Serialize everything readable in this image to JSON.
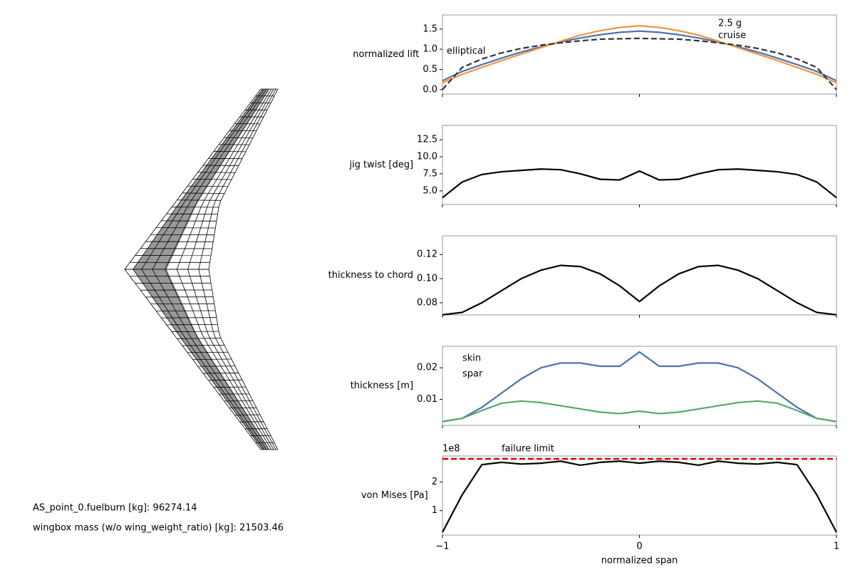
{
  "annotations": [
    "AS_point_0.fuelburn [kg]: 96274.14",
    "wingbox mass (w/o wing_weight_ratio) [kg]: 21503.46"
  ],
  "chart_data": [
    {
      "type": "line",
      "ylabel": "normalized lift",
      "xlim": [
        -1,
        1
      ],
      "xticks": [
        -1,
        0,
        1
      ],
      "show_xtick_labels": false,
      "ylim": [
        -0.11,
        1.85
      ],
      "yticks": [
        {
          "value": 0,
          "label": "0.0"
        },
        0.5,
        {
          "value": 1,
          "label": "1.0"
        },
        1.5
      ],
      "x": [
        -1,
        -0.9,
        -0.8,
        -0.7,
        -0.6,
        -0.5,
        -0.4,
        -0.3,
        -0.2,
        -0.1,
        0,
        0.1,
        0.2,
        0.3,
        0.4,
        0.5,
        0.6,
        0.7,
        0.8,
        0.9,
        1
      ],
      "series": [
        {
          "name": "cruise",
          "color": "#4c72b0",
          "values": [
            0.22,
            0.45,
            0.62,
            0.78,
            0.93,
            1.06,
            1.18,
            1.28,
            1.36,
            1.42,
            1.45,
            1.42,
            1.36,
            1.28,
            1.18,
            1.06,
            0.93,
            0.78,
            0.62,
            0.45,
            0.22
          ]
        },
        {
          "name": "2.5 g",
          "color": "#f5923e",
          "values": [
            0.17,
            0.38,
            0.55,
            0.72,
            0.88,
            1.04,
            1.2,
            1.35,
            1.46,
            1.54,
            1.58,
            1.54,
            1.46,
            1.35,
            1.2,
            1.04,
            0.88,
            0.72,
            0.55,
            0.38,
            0.17
          ]
        },
        {
          "name": "elliptical",
          "color": "#333333",
          "dashed": true,
          "values": [
            0,
            0.55,
            0.76,
            0.91,
            1.02,
            1.1,
            1.16,
            1.21,
            1.25,
            1.26,
            1.27,
            1.26,
            1.25,
            1.21,
            1.16,
            1.1,
            1.02,
            0.91,
            0.76,
            0.55,
            0
          ]
        }
      ]
    },
    {
      "type": "line",
      "ylabel": "jig twist [deg]",
      "xlim": [
        -1,
        1
      ],
      "xticks": [
        -1,
        0,
        1
      ],
      "show_xtick_labels": false,
      "ylim": [
        3.0,
        14.6
      ],
      "yticks": [
        {
          "value": 5,
          "label": "5.0"
        },
        7.5,
        {
          "value": 10,
          "label": "10.0"
        },
        12.5
      ],
      "x": [
        -1,
        -0.9,
        -0.8,
        -0.7,
        -0.6,
        -0.5,
        -0.4,
        -0.3,
        -0.2,
        -0.1,
        0,
        0.1,
        0.2,
        0.3,
        0.4,
        0.5,
        0.6,
        0.7,
        0.8,
        0.9,
        1
      ],
      "series": [
        {
          "name": "jig twist",
          "color": "#000000",
          "values": [
            4.0,
            6.3,
            7.4,
            7.8,
            8.0,
            8.2,
            8.1,
            7.5,
            6.7,
            6.6,
            7.9,
            6.6,
            6.7,
            7.5,
            8.1,
            8.2,
            8.0,
            7.8,
            7.4,
            6.3,
            4.0
          ]
        }
      ]
    },
    {
      "type": "line",
      "ylabel": "thickness to chord",
      "xlim": [
        -1,
        1
      ],
      "xticks": [
        -1,
        0,
        1
      ],
      "show_xtick_labels": false,
      "ylim": [
        0.0699,
        0.1355
      ],
      "yticks": [
        {
          "value": 0.08,
          "label": "0.08"
        },
        {
          "value": 0.1,
          "label": "0.10"
        },
        {
          "value": 0.12,
          "label": "0.12"
        }
      ],
      "x": [
        -1,
        -0.9,
        -0.8,
        -0.7,
        -0.6,
        -0.5,
        -0.4,
        -0.3,
        -0.2,
        -0.1,
        0,
        0.1,
        0.2,
        0.3,
        0.4,
        0.5,
        0.6,
        0.7,
        0.8,
        0.9,
        1
      ],
      "series": [
        {
          "name": "thickness to chord",
          "color": "#000000",
          "values": [
            0.07,
            0.072,
            0.08,
            0.09,
            0.1,
            0.107,
            0.111,
            0.11,
            0.104,
            0.094,
            0.081,
            0.094,
            0.104,
            0.11,
            0.111,
            0.107,
            0.1,
            0.09,
            0.08,
            0.072,
            0.07
          ]
        }
      ]
    },
    {
      "type": "line",
      "ylabel": "thickness [m]",
      "xlim": [
        -1,
        1
      ],
      "xticks": [
        -1,
        0,
        1
      ],
      "show_xtick_labels": false,
      "ylim": [
        0.0018,
        0.0268
      ],
      "yticks": [
        0.01,
        0.02
      ],
      "x": [
        -1,
        -0.9,
        -0.8,
        -0.7,
        -0.6,
        -0.5,
        -0.4,
        -0.3,
        -0.2,
        -0.1,
        0,
        0.1,
        0.2,
        0.3,
        0.4,
        0.5,
        0.6,
        0.7,
        0.8,
        0.9,
        1
      ],
      "series": [
        {
          "name": "skin",
          "color": "#4c72b0",
          "values": [
            0.003,
            0.004,
            0.0075,
            0.012,
            0.0165,
            0.02,
            0.0215,
            0.0215,
            0.0205,
            0.0205,
            0.025,
            0.0205,
            0.0205,
            0.0215,
            0.0215,
            0.02,
            0.0165,
            0.012,
            0.0075,
            0.004,
            0.003
          ]
        },
        {
          "name": "spar",
          "color": "#55a868",
          "values": [
            0.003,
            0.004,
            0.0065,
            0.0088,
            0.0095,
            0.009,
            0.008,
            0.007,
            0.006,
            0.0055,
            0.0063,
            0.0055,
            0.006,
            0.007,
            0.008,
            0.009,
            0.0095,
            0.0088,
            0.0065,
            0.004,
            0.003
          ]
        }
      ]
    },
    {
      "type": "line",
      "ylabel": "von Mises [Pa]",
      "xlabel": "normalized span",
      "offset_label": "1e8",
      "xlim": [
        -1,
        1
      ],
      "xticks": [
        {
          "value": -1,
          "label": "−1"
        },
        0,
        1
      ],
      "show_xtick_labels": true,
      "ylim": [
        0.15,
        2.9
      ],
      "yticks": [
        1,
        2
      ],
      "hline": {
        "value": 2.8,
        "label": "failure limit",
        "color": "#e00000"
      },
      "x": [
        -1,
        -0.9,
        -0.8,
        -0.7,
        -0.6,
        -0.5,
        -0.4,
        -0.3,
        -0.2,
        -0.1,
        0,
        0.1,
        0.2,
        0.3,
        0.4,
        0.5,
        0.6,
        0.7,
        0.8,
        0.9,
        1
      ],
      "series": [
        {
          "name": "von Mises",
          "color": "#000000",
          "values": [
            0.25,
            1.55,
            2.6,
            2.68,
            2.62,
            2.65,
            2.72,
            2.58,
            2.68,
            2.72,
            2.65,
            2.72,
            2.68,
            2.58,
            2.72,
            2.65,
            2.62,
            2.68,
            2.6,
            1.55,
            0.25
          ]
        }
      ]
    }
  ]
}
